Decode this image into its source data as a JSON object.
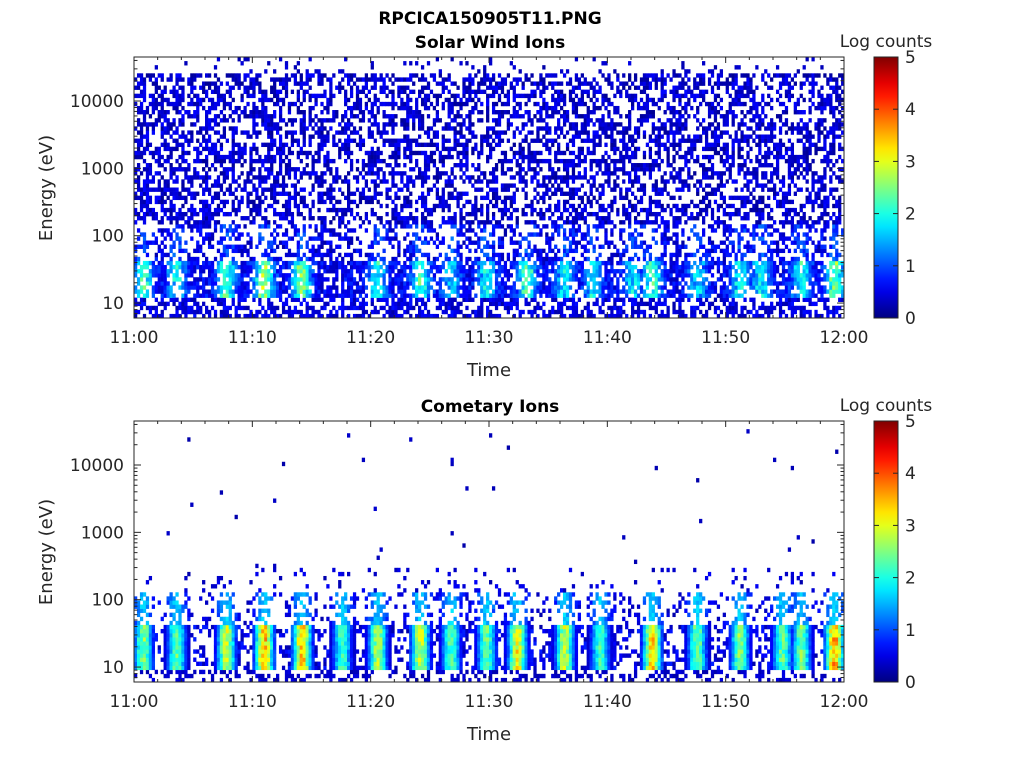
{
  "figure": {
    "title": "RPCICA150905T11.PNG"
  },
  "chart_data": [
    {
      "type": "heatmap",
      "title": "Solar Wind Ions",
      "xlabel": "Time",
      "ylabel": "Energy (eV)",
      "x_ticks": [
        "11:00",
        "11:10",
        "11:20",
        "11:30",
        "11:40",
        "11:50",
        "12:00"
      ],
      "xlim": [
        "11:00",
        "12:00"
      ],
      "y_ticks": [
        "10",
        "100",
        "1000",
        "10000"
      ],
      "ylim": [
        6,
        45000
      ],
      "y_scale": "log",
      "colorbar": {
        "label": "Log counts",
        "ticks": [
          "0",
          "1",
          "2",
          "3",
          "4",
          "5"
        ],
        "range": [
          0,
          5
        ]
      },
      "colormap": "jet",
      "background": "#ffffff",
      "pattern": "dense",
      "hot_times_min": [
        0.8,
        3.6,
        7.8,
        11.0,
        14.2,
        20.6,
        24.2,
        26.8,
        29.8,
        33.2,
        36.4,
        38.8,
        42.2,
        43.8,
        47.6,
        51.2,
        53.0,
        56.4,
        59.2
      ],
      "peak_log_counts": [
        1.9,
        1.6,
        2.0,
        2.5,
        2.4,
        1.6,
        1.8,
        1.4,
        1.7,
        2.0,
        1.6,
        1.5,
        1.5,
        2.0,
        1.4,
        1.7,
        1.6,
        1.7,
        2.3
      ]
    },
    {
      "type": "heatmap",
      "title": "Cometary Ions",
      "xlabel": "Time",
      "ylabel": "Energy (eV)",
      "x_ticks": [
        "11:00",
        "11:10",
        "11:20",
        "11:30",
        "11:40",
        "11:50",
        "12:00"
      ],
      "xlim": [
        "11:00",
        "12:00"
      ],
      "y_ticks": [
        "10",
        "100",
        "1000",
        "10000"
      ],
      "ylim": [
        6,
        45000
      ],
      "y_scale": "log",
      "colorbar": {
        "label": "Log counts",
        "ticks": [
          "0",
          "1",
          "2",
          "3",
          "4",
          "5"
        ],
        "range": [
          0,
          5
        ]
      },
      "colormap": "jet",
      "background": "#ffffff",
      "pattern": "sparse",
      "hot_times_min": [
        0.8,
        3.6,
        7.8,
        11.0,
        14.2,
        17.6,
        20.6,
        24.2,
        26.8,
        29.8,
        32.4,
        36.4,
        39.4,
        43.8,
        47.6,
        51.2,
        54.8,
        56.4,
        59.2
      ],
      "peak_log_counts": [
        2.8,
        2.6,
        3.1,
        3.8,
        3.7,
        2.4,
        3.0,
        3.2,
        2.5,
        2.6,
        3.4,
        3.1,
        2.4,
        3.6,
        2.7,
        2.8,
        2.6,
        2.7,
        3.9
      ]
    }
  ]
}
